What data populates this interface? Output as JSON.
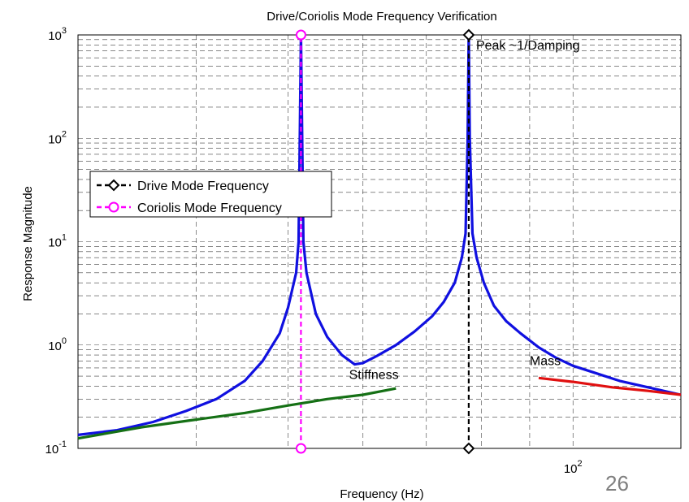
{
  "chart_data": {
    "type": "line",
    "title": "Drive/Coriolis Mode Frequency Verification",
    "xlabel": "Frequency (Hz)",
    "ylabel": "Response Magnitude",
    "xscale": "log",
    "yscale": "log",
    "xlim": [
      30,
      130
    ],
    "ylim": [
      0.1,
      1000
    ],
    "grid": true,
    "legend_position": "middle-left",
    "y_ticks": [
      {
        "base": "10",
        "exp": "-1",
        "value": 0.1
      },
      {
        "base": "10",
        "exp": "0",
        "value": 1
      },
      {
        "base": "10",
        "exp": "1",
        "value": 10
      },
      {
        "base": "10",
        "exp": "2",
        "value": 100
      },
      {
        "base": "10",
        "exp": "3",
        "value": 1000
      }
    ],
    "x_ticks": [
      {
        "base": "10",
        "exp": "2",
        "value": 100
      }
    ],
    "x_gridlines": [
      40,
      50,
      60,
      70,
      80,
      90,
      100
    ],
    "series": [
      {
        "color": "#1010e0",
        "style": "solid",
        "points": [
          [
            30,
            0.135
          ],
          [
            33,
            0.15
          ],
          [
            36,
            0.18
          ],
          [
            39,
            0.23
          ],
          [
            42,
            0.3
          ],
          [
            45,
            0.45
          ],
          [
            47,
            0.7
          ],
          [
            49,
            1.3
          ],
          [
            50,
            2.3
          ],
          [
            51,
            5
          ],
          [
            51.3,
            10
          ],
          [
            51.45,
            100
          ],
          [
            51.6,
            1000
          ],
          [
            51.75,
            100
          ],
          [
            51.9,
            10
          ],
          [
            52.3,
            5
          ],
          [
            53.5,
            2
          ],
          [
            55,
            1.2
          ],
          [
            57,
            0.8
          ],
          [
            58.8,
            0.65
          ],
          [
            60,
            0.67
          ],
          [
            62,
            0.78
          ],
          [
            65,
            1.0
          ],
          [
            68,
            1.35
          ],
          [
            71,
            1.9
          ],
          [
            73,
            2.6
          ],
          [
            75,
            4
          ],
          [
            76.3,
            7
          ],
          [
            77,
            12
          ],
          [
            77.4,
            100
          ],
          [
            77.6,
            1000
          ],
          [
            77.8,
            100
          ],
          [
            78.3,
            12
          ],
          [
            79.1,
            7
          ],
          [
            80.5,
            4
          ],
          [
            82.5,
            2.4
          ],
          [
            85,
            1.7
          ],
          [
            88,
            1.3
          ],
          [
            92,
            0.95
          ],
          [
            96,
            0.75
          ],
          [
            100,
            0.63
          ],
          [
            106,
            0.53
          ],
          [
            112,
            0.45
          ],
          [
            120,
            0.39
          ],
          [
            130,
            0.33
          ]
        ]
      },
      {
        "name": "Drive Mode Frequency",
        "color": "#000000",
        "style": "dashed",
        "marker": "diamond",
        "points": [
          [
            77.6,
            0.1
          ],
          [
            77.6,
            1000
          ]
        ]
      },
      {
        "name": "Coriolis Mode Frequency",
        "color": "#ff00ff",
        "style": "dashed",
        "marker": "circle",
        "points": [
          [
            51.6,
            0.1
          ],
          [
            51.6,
            1000
          ]
        ]
      },
      {
        "color": "#157015",
        "style": "solid",
        "points": [
          [
            30,
            0.125
          ],
          [
            35,
            0.16
          ],
          [
            40,
            0.19
          ],
          [
            45,
            0.22
          ],
          [
            50,
            0.26
          ],
          [
            55,
            0.3
          ],
          [
            60,
            0.33
          ],
          [
            65,
            0.38
          ]
        ]
      },
      {
        "color": "#e01010",
        "style": "solid",
        "points": [
          [
            92,
            0.48
          ],
          [
            100,
            0.44
          ],
          [
            110,
            0.39
          ],
          [
            120,
            0.36
          ],
          [
            130,
            0.33
          ]
        ]
      }
    ],
    "annotations": [
      {
        "text": "Peak ~1/Damping",
        "x": 79,
        "y": 720
      },
      {
        "text": "Stiffness",
        "x": 58,
        "y": 0.47
      },
      {
        "text": "Mass",
        "x": 90,
        "y": 0.64
      }
    ]
  },
  "slide_number": "26"
}
